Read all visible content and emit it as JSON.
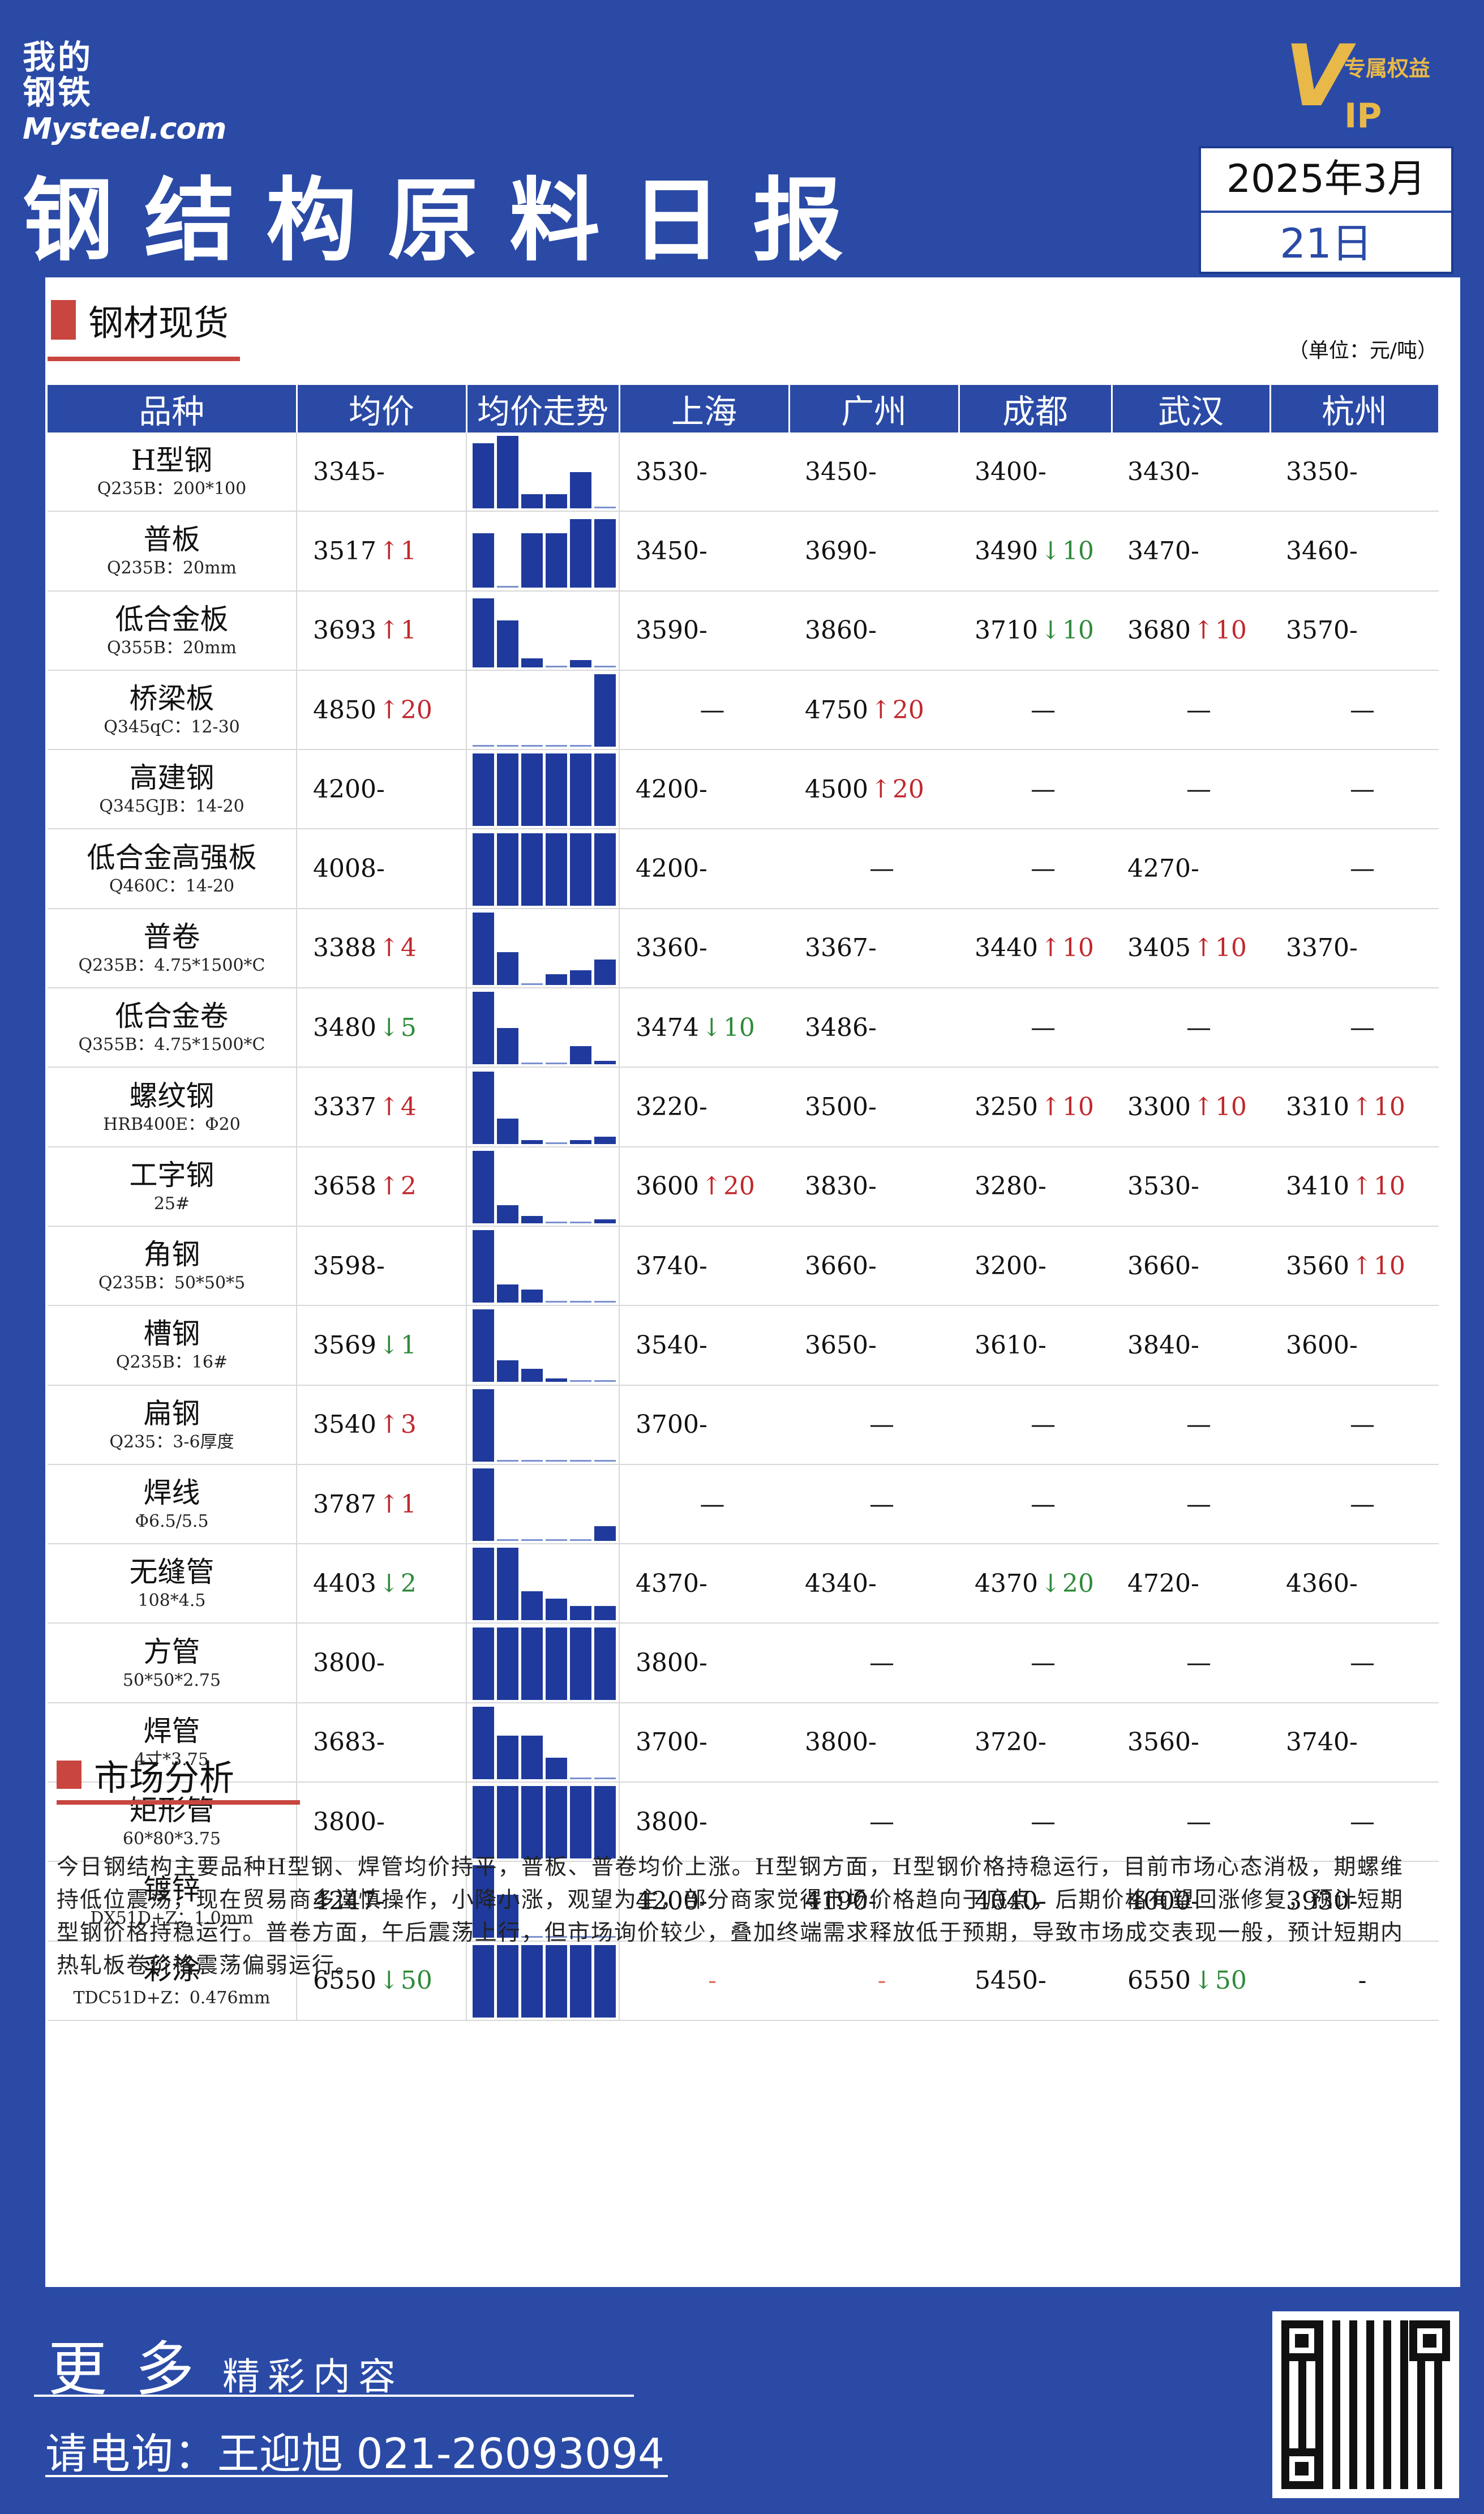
{
  "brand": {
    "logo_cn_1": "我的",
    "logo_cn_2": "钢铁",
    "logo_en": "Mysteel.com",
    "vip_letter": "V",
    "vip_text": "专属权益",
    "vip_ip": "IP"
  },
  "header": {
    "title": "钢结构原料日报",
    "date_line1": "2025年3月",
    "date_line2": "21日"
  },
  "section1": {
    "title": "钢材现货",
    "unit": "（单位：元/吨）"
  },
  "table": {
    "columns": [
      "品种",
      "均价",
      "均价走势",
      "上海",
      "广州",
      "成都",
      "武汉",
      "杭州"
    ],
    "rows": [
      {
        "name": "H型钢",
        "spec": "Q235B：200*100",
        "avg": "3345",
        "avg_chg": "-",
        "avg_dir": "flat",
        "trend": [
          0.9,
          1.0,
          0.2,
          0.2,
          0.5,
          0.0
        ],
        "cities": [
          [
            "3530",
            "-",
            "flat"
          ],
          [
            "3450",
            "-",
            "flat"
          ],
          [
            "3400",
            "-",
            "flat"
          ],
          [
            "3430",
            "-",
            "flat"
          ],
          [
            "3350",
            "-",
            "flat"
          ]
        ]
      },
      {
        "name": "普板",
        "spec": "Q235B：20mm",
        "avg": "3517",
        "avg_chg": "1",
        "avg_dir": "up",
        "trend": [
          0.75,
          0.0,
          0.75,
          0.75,
          0.95,
          0.95
        ],
        "cities": [
          [
            "3450",
            "-",
            "flat"
          ],
          [
            "3690",
            "-",
            "flat"
          ],
          [
            "3490",
            "10",
            "down"
          ],
          [
            "3470",
            "-",
            "flat"
          ],
          [
            "3460",
            "-",
            "flat"
          ]
        ]
      },
      {
        "name": "低合金板",
        "spec": "Q355B：20mm",
        "avg": "3693",
        "avg_chg": "1",
        "avg_dir": "up",
        "trend": [
          0.95,
          0.65,
          0.12,
          0.0,
          0.1,
          0.0
        ],
        "cities": [
          [
            "3590",
            "-",
            "flat"
          ],
          [
            "3860",
            "-",
            "flat"
          ],
          [
            "3710",
            "10",
            "down"
          ],
          [
            "3680",
            "10",
            "up"
          ],
          [
            "3570",
            "-",
            "flat"
          ]
        ]
      },
      {
        "name": "桥梁板",
        "spec": "Q345qC：12-30",
        "avg": "4850",
        "avg_chg": "20",
        "avg_dir": "up",
        "trend": [
          0.0,
          0.0,
          0.0,
          0.0,
          0.0,
          1.0
        ],
        "cities": [
          [
            "—",
            "",
            "none"
          ],
          [
            "4750",
            "20",
            "up"
          ],
          [
            "—",
            "",
            "none"
          ],
          [
            "—",
            "",
            "none"
          ],
          [
            "—",
            "",
            "none"
          ]
        ]
      },
      {
        "name": "高建钢",
        "spec": "Q345GJB：14-20",
        "avg": "4200",
        "avg_chg": "-",
        "avg_dir": "flat",
        "trend": [
          1.0,
          1.0,
          1.0,
          1.0,
          1.0,
          1.0
        ],
        "cities": [
          [
            "4200",
            "-",
            "flat"
          ],
          [
            "4500",
            "20",
            "up"
          ],
          [
            "—",
            "",
            "none"
          ],
          [
            "—",
            "",
            "none"
          ],
          [
            "—",
            "",
            "none"
          ]
        ]
      },
      {
        "name": "低合金高强板",
        "spec": "Q460C：14-20",
        "avg": "4008",
        "avg_chg": "-",
        "avg_dir": "flat",
        "trend": [
          1.0,
          1.0,
          1.0,
          1.0,
          1.0,
          1.0
        ],
        "cities": [
          [
            "4200",
            "-",
            "flat"
          ],
          [
            "—",
            "",
            "none"
          ],
          [
            "—",
            "",
            "none"
          ],
          [
            "4270",
            "-",
            "flat"
          ],
          [
            "—",
            "",
            "none"
          ]
        ]
      },
      {
        "name": "普卷",
        "spec": "Q235B：4.75*1500*C",
        "avg": "3388",
        "avg_chg": "4",
        "avg_dir": "up",
        "trend": [
          1.0,
          0.45,
          0.0,
          0.15,
          0.2,
          0.35
        ],
        "cities": [
          [
            "3360",
            "-",
            "flat"
          ],
          [
            "3367",
            "-",
            "flat"
          ],
          [
            "3440",
            "10",
            "up"
          ],
          [
            "3405",
            "10",
            "up"
          ],
          [
            "3370",
            "-",
            "flat"
          ]
        ]
      },
      {
        "name": "低合金卷",
        "spec": "Q355B：4.75*1500*C",
        "avg": "3480",
        "avg_chg": "5",
        "avg_dir": "down",
        "trend": [
          1.0,
          0.5,
          0.0,
          0.0,
          0.25,
          0.05
        ],
        "cities": [
          [
            "3474",
            "10",
            "down"
          ],
          [
            "3486",
            "-",
            "flat"
          ],
          [
            "—",
            "",
            "none"
          ],
          [
            "—",
            "",
            "none"
          ],
          [
            "—",
            "",
            "none"
          ]
        ]
      },
      {
        "name": "螺纹钢",
        "spec": "HRB400E：Φ20",
        "avg": "3337",
        "avg_chg": "4",
        "avg_dir": "up",
        "trend": [
          1.0,
          0.35,
          0.05,
          0.0,
          0.05,
          0.1
        ],
        "cities": [
          [
            "3220",
            "-",
            "flat"
          ],
          [
            "3500",
            "-",
            "flat"
          ],
          [
            "3250",
            "10",
            "up"
          ],
          [
            "3300",
            "10",
            "up"
          ],
          [
            "3310",
            "10",
            "up"
          ]
        ]
      },
      {
        "name": "工字钢",
        "spec": "25#",
        "avg": "3658",
        "avg_chg": "2",
        "avg_dir": "up",
        "trend": [
          1.0,
          0.25,
          0.1,
          0.0,
          0.0,
          0.05
        ],
        "cities": [
          [
            "3600",
            "20",
            "up"
          ],
          [
            "3830",
            "-",
            "flat"
          ],
          [
            "3280",
            "-",
            "flat"
          ],
          [
            "3530",
            "-",
            "flat"
          ],
          [
            "3410",
            "10",
            "up"
          ]
        ]
      },
      {
        "name": "角钢",
        "spec": "Q235B：50*50*5",
        "avg": "3598",
        "avg_chg": "-",
        "avg_dir": "flat",
        "trend": [
          1.0,
          0.25,
          0.18,
          0.0,
          0.0,
          0.0
        ],
        "cities": [
          [
            "3740",
            "-",
            "flat"
          ],
          [
            "3660",
            "-",
            "flat"
          ],
          [
            "3200",
            "-",
            "flat"
          ],
          [
            "3660",
            "-",
            "flat"
          ],
          [
            "3560",
            "10",
            "up"
          ]
        ]
      },
      {
        "name": "槽钢",
        "spec": "Q235B：16#",
        "avg": "3569",
        "avg_chg": "1",
        "avg_dir": "down",
        "trend": [
          1.0,
          0.3,
          0.18,
          0.05,
          0.0,
          0.0
        ],
        "cities": [
          [
            "3540",
            "-",
            "flat"
          ],
          [
            "3650",
            "-",
            "flat"
          ],
          [
            "3610",
            "-",
            "flat"
          ],
          [
            "3840",
            "-",
            "flat"
          ],
          [
            "3600",
            "-",
            "flat"
          ]
        ]
      },
      {
        "name": "扁钢",
        "spec": "Q235：3-6厚度",
        "avg": "3540",
        "avg_chg": "3",
        "avg_dir": "up",
        "trend": [
          1.0,
          0.0,
          0.0,
          0.0,
          0.0,
          0.0
        ],
        "cities": [
          [
            "3700",
            "-",
            "flat"
          ],
          [
            "—",
            "",
            "none"
          ],
          [
            "—",
            "",
            "none"
          ],
          [
            "—",
            "",
            "none"
          ],
          [
            "—",
            "",
            "none"
          ]
        ]
      },
      {
        "name": "焊线",
        "spec": "Φ6.5/5.5",
        "avg": "3787",
        "avg_chg": "1",
        "avg_dir": "up",
        "trend": [
          1.0,
          0.0,
          0.0,
          0.0,
          0.0,
          0.2
        ],
        "cities": [
          [
            "—",
            "",
            "none"
          ],
          [
            "—",
            "",
            "none"
          ],
          [
            "—",
            "",
            "none"
          ],
          [
            "—",
            "",
            "none"
          ],
          [
            "—",
            "",
            "none"
          ]
        ]
      },
      {
        "name": "无缝管",
        "spec": "108*4.5",
        "avg": "4403",
        "avg_chg": "2",
        "avg_dir": "down",
        "trend": [
          1.0,
          1.0,
          0.4,
          0.3,
          0.2,
          0.2
        ],
        "cities": [
          [
            "4370",
            "-",
            "flat"
          ],
          [
            "4340",
            "-",
            "flat"
          ],
          [
            "4370",
            "20",
            "down"
          ],
          [
            "4720",
            "-",
            "flat"
          ],
          [
            "4360",
            "-",
            "flat"
          ]
        ]
      },
      {
        "name": "方管",
        "spec": "50*50*2.75",
        "avg": "3800",
        "avg_chg": "-",
        "avg_dir": "flat",
        "trend": [
          1.0,
          1.0,
          1.0,
          1.0,
          1.0,
          1.0
        ],
        "cities": [
          [
            "3800",
            "-",
            "flat"
          ],
          [
            "—",
            "",
            "none"
          ],
          [
            "—",
            "",
            "none"
          ],
          [
            "—",
            "",
            "none"
          ],
          [
            "—",
            "",
            "none"
          ]
        ]
      },
      {
        "name": "焊管",
        "spec": "4寸*3.75",
        "avg": "3683",
        "avg_chg": "-",
        "avg_dir": "flat",
        "trend": [
          1.0,
          0.6,
          0.6,
          0.3,
          0.0,
          0.0
        ],
        "cities": [
          [
            "3700",
            "-",
            "flat"
          ],
          [
            "3800",
            "-",
            "flat"
          ],
          [
            "3720",
            "-",
            "flat"
          ],
          [
            "3560",
            "-",
            "flat"
          ],
          [
            "3740",
            "-",
            "flat"
          ]
        ]
      },
      {
        "name": "矩形管",
        "spec": "60*80*3.75",
        "avg": "3800",
        "avg_chg": "-",
        "avg_dir": "flat",
        "trend": [
          1.0,
          1.0,
          1.0,
          1.0,
          1.0,
          1.0
        ],
        "cities": [
          [
            "3800",
            "-",
            "flat"
          ],
          [
            "—",
            "",
            "none"
          ],
          [
            "—",
            "",
            "none"
          ],
          [
            "—",
            "",
            "none"
          ],
          [
            "—",
            "",
            "none"
          ]
        ]
      },
      {
        "name": "镀锌",
        "spec": "DX51D+Z：1.0mm",
        "avg": "4247",
        "avg_chg": "-",
        "avg_dir": "flat",
        "trend": [
          1.0,
          0.6,
          0.0,
          0.0,
          0.0,
          0.0
        ],
        "cities": [
          [
            "4200",
            "-",
            "flat"
          ],
          [
            "4190",
            "-",
            "flat"
          ],
          [
            "4040",
            "-",
            "flat"
          ],
          [
            "4000",
            "-",
            "flat"
          ],
          [
            "3930",
            "-",
            "flat"
          ]
        ]
      },
      {
        "name": "彩涂",
        "spec": "TDC51D+Z：0.476mm",
        "avg": "6550",
        "avg_chg": "50",
        "avg_dir": "down",
        "trend": [
          1.0,
          1.0,
          1.0,
          1.0,
          1.0,
          1.0
        ],
        "cities": [
          [
            "-",
            "",
            "na"
          ],
          [
            "-",
            "",
            "na"
          ],
          [
            "5450",
            "-",
            "flat"
          ],
          [
            "6550",
            "50",
            "down"
          ],
          [
            "-",
            "",
            "plain"
          ]
        ]
      }
    ]
  },
  "section2": {
    "title": "市场分析",
    "text": "今日钢结构主要品种H型钢、焊管均价持平，普板、普卷均价上涨。H型钢方面，H型钢价格持稳运行，目前市场心态消极，期螺维持低位震荡，现在贸易商多谨慎操作，小降小涨，观望为主，部分商家觉得市场价格趋向于底点，后期价格有望回涨修复，预计短期型钢价格持稳运行。普卷方面，午后震荡上行，但市场询价较少，叠加终端需求释放低于预期，导致市场成交表现一般，预计短期内热轧板卷价格震荡偏弱运行。"
  },
  "footer": {
    "more_a": "更多",
    "more_b": "精彩内容",
    "phone_label": "请电询：",
    "contact": "王迎旭  021-26093094"
  }
}
